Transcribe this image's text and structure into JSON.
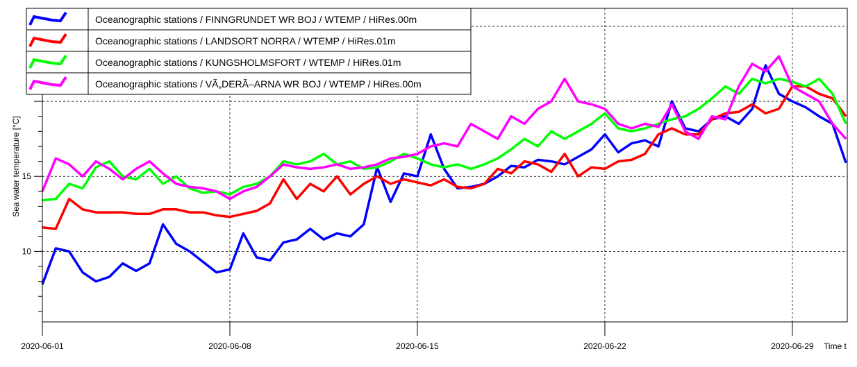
{
  "chart_data": {
    "type": "line",
    "ylabel": "Sea water temperature [°C]",
    "xlabel": "Time t",
    "x_start": "2020-06-01",
    "x_step_days": 0.5,
    "xlim_days": [
      0,
      30.05
    ],
    "ylim": [
      5.3,
      26.2
    ],
    "y_ticks": [
      10,
      15,
      20,
      25
    ],
    "y_tick_labels": [
      "10",
      "15",
      "",
      ""
    ],
    "x_ticks": [
      {
        "day": 0,
        "label": "2020-06-01"
      },
      {
        "day": 7,
        "label": "2020-06-08"
      },
      {
        "day": 14,
        "label": "2020-06-15"
      },
      {
        "day": 21,
        "label": "2020-06-22"
      },
      {
        "day": 28,
        "label": "2020-06-29"
      }
    ],
    "grid": true,
    "legend_position": "top-left",
    "series": [
      {
        "name": "Oceanographic stations / FINNGRUNDET WR BOJ / WTEMP / HiRes.00m",
        "color": "#0000ff",
        "values": [
          7.8,
          10.2,
          10.0,
          8.6,
          8.0,
          8.3,
          9.2,
          8.7,
          9.2,
          11.8,
          10.5,
          10.0,
          9.3,
          8.6,
          8.8,
          11.2,
          9.6,
          9.4,
          10.6,
          10.8,
          11.5,
          10.8,
          11.2,
          11.0,
          11.8,
          15.6,
          13.3,
          15.2,
          15.0,
          17.8,
          15.5,
          14.2,
          14.3,
          14.5,
          15.0,
          15.7,
          15.6,
          16.1,
          16.0,
          15.8,
          16.3,
          16.8,
          17.8,
          16.6,
          17.2,
          17.4,
          17.0,
          20.0,
          18.2,
          18.0,
          18.8,
          19.0,
          18.5,
          19.5,
          22.4,
          20.5,
          20.0,
          19.6,
          19.0,
          18.5,
          15.9
        ]
      },
      {
        "name": "Oceanographic stations / LANDSORT NORRA / WTEMP / HiRes.01m",
        "color": "#ff0000",
        "values": [
          11.6,
          11.5,
          13.5,
          12.8,
          12.6,
          12.6,
          12.6,
          12.5,
          12.5,
          12.8,
          12.8,
          12.6,
          12.6,
          12.4,
          12.3,
          12.5,
          12.7,
          13.2,
          14.8,
          13.5,
          14.5,
          14.0,
          15.0,
          13.8,
          14.5,
          15.0,
          14.5,
          14.8,
          14.6,
          14.4,
          14.8,
          14.3,
          14.2,
          14.5,
          15.5,
          15.2,
          16.0,
          15.8,
          15.3,
          16.5,
          15.0,
          15.6,
          15.5,
          16.0,
          16.1,
          16.5,
          17.8,
          18.2,
          17.8,
          17.8,
          18.8,
          19.2,
          19.3,
          19.8,
          19.2,
          19.5,
          21.0,
          21.0,
          20.5,
          20.2,
          19.0
        ]
      },
      {
        "name": "Oceanographic stations / KUNGSHOLMSFORT / WTEMP / HiRes.01m",
        "color": "#00ff00",
        "values": [
          13.4,
          13.5,
          14.5,
          14.2,
          15.6,
          16.0,
          15.0,
          14.8,
          15.5,
          14.5,
          15.0,
          14.2,
          13.9,
          14.0,
          13.8,
          14.3,
          14.5,
          15.0,
          16.0,
          15.8,
          16.0,
          16.5,
          15.8,
          16.0,
          15.5,
          15.6,
          16.0,
          16.5,
          16.2,
          15.8,
          15.6,
          15.8,
          15.5,
          15.8,
          16.2,
          16.8,
          17.5,
          17.0,
          18.0,
          17.5,
          18.0,
          18.5,
          19.2,
          18.2,
          18.0,
          18.2,
          18.5,
          18.8,
          19.0,
          19.5,
          20.2,
          21.0,
          20.5,
          21.5,
          21.2,
          21.5,
          21.3,
          21.0,
          21.5,
          20.5,
          18.5
        ]
      },
      {
        "name": "Oceanographic stations / VÃ„DERÃ–ARNA WR BOJ / WTEMP / HiRes.00m",
        "color": "#ff00ff",
        "values": [
          14.0,
          16.2,
          15.8,
          15.0,
          16.0,
          15.5,
          14.8,
          15.5,
          16.0,
          15.2,
          14.5,
          14.3,
          14.2,
          14.0,
          13.5,
          14.0,
          14.3,
          15.0,
          15.8,
          15.6,
          15.5,
          15.6,
          15.8,
          15.5,
          15.6,
          15.8,
          16.2,
          16.3,
          16.5,
          17.0,
          17.2,
          17.0,
          18.5,
          18.0,
          17.5,
          19.0,
          18.5,
          19.5,
          20.0,
          21.5,
          20.0,
          19.8,
          19.5,
          18.5,
          18.2,
          18.5,
          18.3,
          19.8,
          18.0,
          17.5,
          19.0,
          18.8,
          21.0,
          22.5,
          22.0,
          23.0,
          21.0,
          20.5,
          20.0,
          18.5,
          17.5
        ]
      }
    ]
  }
}
